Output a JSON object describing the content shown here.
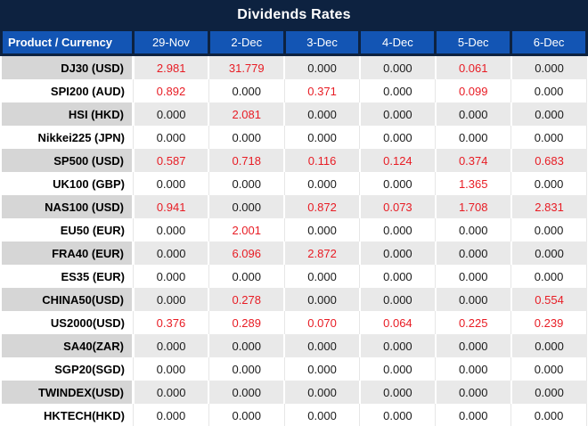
{
  "title": "Dividends Rates",
  "colors": {
    "title_bar_navy": "#0d2240",
    "header_blue": "#1355b4",
    "header_text": "#ffffff",
    "row_stripe_label_gray": "#d6d6d6",
    "row_stripe_cell_gray": "#e9e9e9",
    "row_white": "#ffffff",
    "gridline_light": "#e6e6e6",
    "value_nonzero_red": "#e81c24",
    "value_zero_black": "#1a1a1a"
  },
  "chart_data": {
    "type": "table",
    "title": "Dividends Rates",
    "columns": [
      "Product / Currency",
      "29-Nov",
      "2-Dec",
      "3-Dec",
      "4-Dec",
      "5-Dec",
      "6-Dec"
    ],
    "rows": [
      {
        "product": "DJ30 (USD)",
        "values": [
          "2.981",
          "31.779",
          "0.000",
          "0.000",
          "0.061",
          "0.000"
        ]
      },
      {
        "product": "SPI200 (AUD)",
        "values": [
          "0.892",
          "0.000",
          "0.371",
          "0.000",
          "0.099",
          "0.000"
        ]
      },
      {
        "product": "HSI (HKD)",
        "values": [
          "0.000",
          "2.081",
          "0.000",
          "0.000",
          "0.000",
          "0.000"
        ]
      },
      {
        "product": "Nikkei225 (JPN)",
        "values": [
          "0.000",
          "0.000",
          "0.000",
          "0.000",
          "0.000",
          "0.000"
        ]
      },
      {
        "product": "SP500 (USD)",
        "values": [
          "0.587",
          "0.718",
          "0.116",
          "0.124",
          "0.374",
          "0.683"
        ]
      },
      {
        "product": "UK100 (GBP)",
        "values": [
          "0.000",
          "0.000",
          "0.000",
          "0.000",
          "1.365",
          "0.000"
        ]
      },
      {
        "product": "NAS100 (USD)",
        "values": [
          "0.941",
          "0.000",
          "0.872",
          "0.073",
          "1.708",
          "2.831"
        ]
      },
      {
        "product": "EU50 (EUR)",
        "values": [
          "0.000",
          "2.001",
          "0.000",
          "0.000",
          "0.000",
          "0.000"
        ]
      },
      {
        "product": "FRA40 (EUR)",
        "values": [
          "0.000",
          "6.096",
          "2.872",
          "0.000",
          "0.000",
          "0.000"
        ]
      },
      {
        "product": "ES35 (EUR)",
        "values": [
          "0.000",
          "0.000",
          "0.000",
          "0.000",
          "0.000",
          "0.000"
        ]
      },
      {
        "product": "CHINA50(USD)",
        "values": [
          "0.000",
          "0.278",
          "0.000",
          "0.000",
          "0.000",
          "0.554"
        ]
      },
      {
        "product": "US2000(USD)",
        "values": [
          "0.376",
          "0.289",
          "0.070",
          "0.064",
          "0.225",
          "0.239"
        ]
      },
      {
        "product": "SA40(ZAR)",
        "values": [
          "0.000",
          "0.000",
          "0.000",
          "0.000",
          "0.000",
          "0.000"
        ]
      },
      {
        "product": "SGP20(SGD)",
        "values": [
          "0.000",
          "0.000",
          "0.000",
          "0.000",
          "0.000",
          "0.000"
        ]
      },
      {
        "product": "TWINDEX(USD)",
        "values": [
          "0.000",
          "0.000",
          "0.000",
          "0.000",
          "0.000",
          "0.000"
        ]
      },
      {
        "product": "HKTECH(HKD)",
        "values": [
          "0.000",
          "0.000",
          "0.000",
          "0.000",
          "0.000",
          "0.000"
        ]
      }
    ]
  }
}
